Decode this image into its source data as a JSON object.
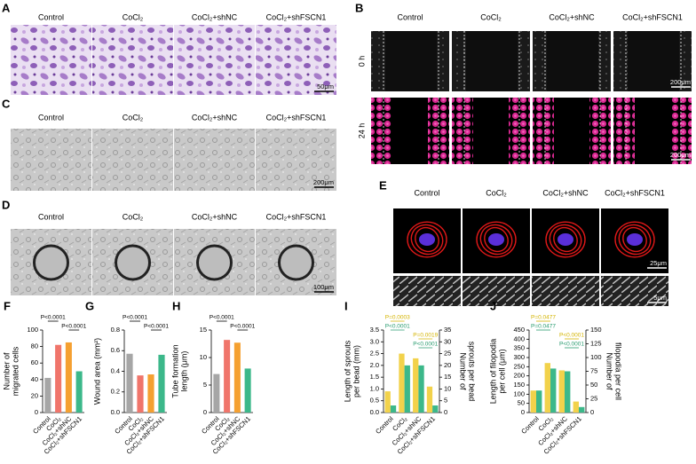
{
  "conditions": [
    "Control",
    "CoCl₂",
    "CoCl₂+shNC",
    "CoCl₂+shFSCN1"
  ],
  "panel_a": {
    "letter": "A",
    "scale_bar": "50μm"
  },
  "panel_b": {
    "letter": "B",
    "rows": [
      "0 h",
      "24 h"
    ],
    "scale_bar": "200μm"
  },
  "panel_c": {
    "letter": "C",
    "scale_bar": "200μm"
  },
  "panel_d": {
    "letter": "D",
    "scale_bar": "100μm"
  },
  "panel_e": {
    "letter": "E",
    "scale_bars": [
      "25μm",
      "5μm"
    ]
  },
  "chart_data": [
    {
      "letter": "F",
      "type": "bar",
      "ylabel": [
        "Number of",
        "migrated cells"
      ],
      "categories": [
        "Control",
        "CoCl₂",
        "CoCl₂+shNC",
        "CoCl₂+shFSCN1"
      ],
      "values": [
        42,
        82,
        85,
        50
      ],
      "colors": [
        "#a6a6a6",
        "#f0756b",
        "#f5a030",
        "#3cb88a"
      ],
      "ylim": [
        0,
        100
      ],
      "yticks": [
        0,
        20,
        40,
        60,
        80,
        100
      ],
      "annotations": [
        {
          "text": "P<0.0001",
          "color": "#000000"
        },
        {
          "text": "P<0.0001",
          "color": "#000000"
        }
      ]
    },
    {
      "letter": "G",
      "type": "bar",
      "ylabel": [
        "Wound area (mm²)"
      ],
      "categories": [
        "Control",
        "CoCl₂",
        "CoCl₂+shNC",
        "CoCl₂+shFSCN1"
      ],
      "values": [
        0.57,
        0.36,
        0.37,
        0.56
      ],
      "colors": [
        "#a6a6a6",
        "#f0756b",
        "#f5a030",
        "#3cb88a"
      ],
      "ylim": [
        0,
        0.8
      ],
      "yticks": [
        {
          "value": 0,
          "label": "0.0"
        },
        0.2,
        0.4,
        0.6,
        0.8
      ],
      "annotations": [
        {
          "text": "P<0.0001",
          "color": "#000000"
        },
        {
          "text": "P<0.0001",
          "color": "#000000"
        }
      ]
    },
    {
      "letter": "H",
      "type": "bar",
      "ylabel": [
        "Tube formation",
        "length (μm)"
      ],
      "categories": [
        "Control",
        "CoCl₂",
        "CoCl₂+shNC",
        "CoCl₂+shFSCN1"
      ],
      "values": [
        7,
        13.2,
        12.7,
        8
      ],
      "colors": [
        "#a6a6a6",
        "#f0756b",
        "#f5a030",
        "#3cb88a"
      ],
      "ylim": [
        0,
        15
      ],
      "yticks": [
        0,
        5,
        10,
        15
      ],
      "annotations": [
        {
          "text": "P<0.0001",
          "color": "#000000"
        },
        {
          "text": "P<0.0001",
          "color": "#000000"
        }
      ]
    },
    {
      "letter": "I",
      "type": "bar",
      "ylabel": [
        "Length of sprouts",
        "per bead (mm)"
      ],
      "y2label": [
        "Number of",
        "sprouts per bead"
      ],
      "categories": [
        "Control",
        "CoCl₂",
        "CoCl₂+shNC",
        "CoCl₂+shFSCN1"
      ],
      "series": [
        {
          "color": "#f2d24b",
          "values": [
            0.9,
            2.5,
            2.3,
            1.1
          ]
        },
        {
          "color": "#3cb88a",
          "values": [
            3,
            20,
            20,
            3
          ],
          "axis": "y2"
        }
      ],
      "ylim": [
        0,
        3.5
      ],
      "yticks": [
        {
          "value": 0,
          "label": "0.0"
        },
        0.5,
        {
          "value": 1,
          "label": "1.0"
        },
        1.5,
        {
          "value": 2,
          "label": "2.0"
        },
        2.5,
        {
          "value": 3,
          "label": "3.0"
        },
        3.5
      ],
      "y2lim": [
        0,
        35
      ],
      "y2ticks": [
        0,
        5,
        10,
        15,
        20,
        25,
        30,
        35
      ],
      "annotations": [
        {
          "text": "P=0.0003",
          "color": "#d4b400"
        },
        {
          "text": "P<0.0001",
          "color": "#2a9c70"
        },
        {
          "text": "P=0.0019",
          "color": "#d4b400"
        },
        {
          "text": "P<0.0001",
          "color": "#2a9c70"
        }
      ]
    },
    {
      "letter": "J",
      "type": "bar",
      "ylabel": [
        "Length of filopodia",
        "per cell (μm)"
      ],
      "y2label": [
        "Number of",
        "filopodia per cell"
      ],
      "categories": [
        "Control",
        "CoCl₂",
        "CoCl₂+shNC",
        "CoCl₂+shFSCN1"
      ],
      "series": [
        {
          "color": "#f2d24b",
          "values": [
            120,
            270,
            230,
            60
          ]
        },
        {
          "color": "#3cb88a",
          "values": [
            40,
            80,
            75,
            10
          ],
          "axis": "y2"
        }
      ],
      "ylim": [
        0,
        450
      ],
      "yticks": [
        0,
        50,
        100,
        150,
        200,
        250,
        300,
        350,
        400,
        450
      ],
      "y2lim": [
        0,
        150
      ],
      "y2ticks": [
        0,
        25,
        50,
        75,
        100,
        125,
        150
      ],
      "annotations": [
        {
          "text": "P=0.0477",
          "color": "#d4b400"
        },
        {
          "text": "P=0.0477",
          "color": "#2a9c70"
        },
        {
          "text": "P<0.0001",
          "color": "#d4b400"
        },
        {
          "text": "P<0.0001",
          "color": "#2a9c70"
        }
      ]
    }
  ]
}
